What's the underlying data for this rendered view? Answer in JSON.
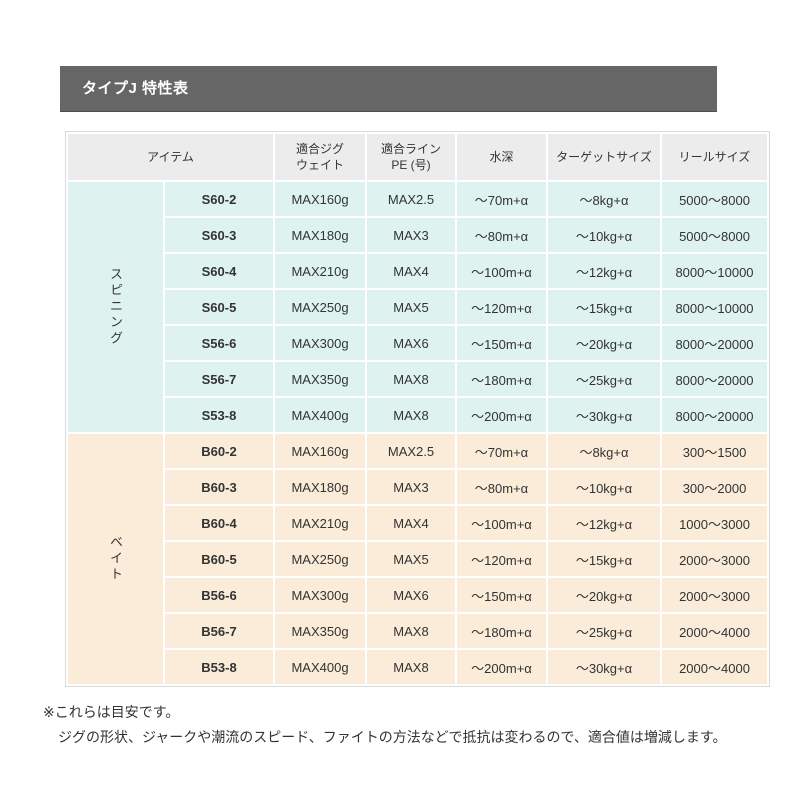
{
  "title": "タイプJ 特性表",
  "table": {
    "headers": [
      "アイテム",
      "適合ジグ\nウェイト",
      "適合ライン\nPE (号)",
      "水深",
      "ターゲットサイズ",
      "リールサイズ"
    ],
    "groups": [
      {
        "id": "spinning",
        "label": "スピニング",
        "style": "spin",
        "color": "#def3f0",
        "rows": [
          [
            "S60-2",
            "MAX160g",
            "MAX2.5",
            "～70m+α",
            "～8kg+α",
            "5000～8000"
          ],
          [
            "S60-3",
            "MAX180g",
            "MAX3",
            "～80m+α",
            "～10kg+α",
            "5000～8000"
          ],
          [
            "S60-4",
            "MAX210g",
            "MAX4",
            "～100m+α",
            "～12kg+α",
            "8000～10000"
          ],
          [
            "S60-5",
            "MAX250g",
            "MAX5",
            "～120m+α",
            "～15kg+α",
            "8000～10000"
          ],
          [
            "S56-6",
            "MAX300g",
            "MAX6",
            "～150m+α",
            "～20kg+α",
            "8000～20000"
          ],
          [
            "S56-7",
            "MAX350g",
            "MAX8",
            "～180m+α",
            "～25kg+α",
            "8000～20000"
          ],
          [
            "S53-8",
            "MAX400g",
            "MAX8",
            "～200m+α",
            "～30kg+α",
            "8000～20000"
          ]
        ]
      },
      {
        "id": "bait",
        "label": "ベイト",
        "style": "bait",
        "color": "#faecd8",
        "rows": [
          [
            "B60-2",
            "MAX160g",
            "MAX2.5",
            "～70m+α",
            "～8kg+α",
            "300～1500"
          ],
          [
            "B60-3",
            "MAX180g",
            "MAX3",
            "～80m+α",
            "～10kg+α",
            "300～2000"
          ],
          [
            "B60-4",
            "MAX210g",
            "MAX4",
            "～100m+α",
            "～12kg+α",
            "1000～3000"
          ],
          [
            "B60-5",
            "MAX250g",
            "MAX5",
            "～120m+α",
            "～15kg+α",
            "2000～3000"
          ],
          [
            "B56-6",
            "MAX300g",
            "MAX6",
            "～150m+α",
            "～20kg+α",
            "2000～3000"
          ],
          [
            "B56-7",
            "MAX350g",
            "MAX8",
            "～180m+α",
            "～25kg+α",
            "2000～4000"
          ],
          [
            "B53-8",
            "MAX400g",
            "MAX8",
            "～200m+α",
            "～30kg+α",
            "2000～4000"
          ]
        ]
      }
    ]
  },
  "notes": [
    "※これらは目安です。",
    "ジグの形状、ジャークや潮流のスピード、ファイトの方法などで抵抗は変わるので、適合値は増減します。"
  ],
  "colors": {
    "title_bar": "#666667",
    "header_bg": "#ececec",
    "spinning_bg": "#def3f0",
    "bait_bg": "#faecd8"
  }
}
